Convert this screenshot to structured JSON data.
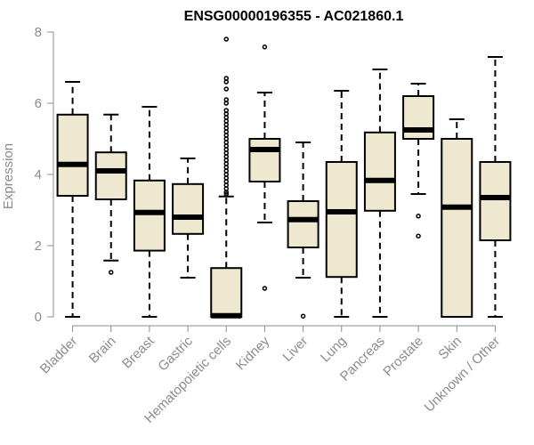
{
  "chart_data": {
    "type": "boxplot",
    "title": "ENSG00000196355 - AC021860.1",
    "xlabel": "",
    "ylabel": "Expression",
    "ylim": [
      0,
      8
    ],
    "yticks": [
      0,
      2,
      4,
      6,
      8
    ],
    "box_fill": "#efe8d0",
    "categories": [
      "Bladder",
      "Brain",
      "Breast",
      "Gastric",
      "Hematopoietic cells",
      "Kidney",
      "Liver",
      "Lung",
      "Pancreas",
      "Prostate",
      "Skin",
      "Unknown / Other"
    ],
    "boxes": [
      {
        "whisker_low": 0.0,
        "q1": 3.4,
        "median": 4.28,
        "q3": 5.68,
        "whisker_high": 6.6,
        "outliers": []
      },
      {
        "whisker_low": 1.58,
        "q1": 3.3,
        "median": 4.1,
        "q3": 4.62,
        "whisker_high": 5.68,
        "outliers": [
          1.25
        ]
      },
      {
        "whisker_low": 0.0,
        "q1": 1.86,
        "median": 2.93,
        "q3": 3.83,
        "whisker_high": 5.9,
        "outliers": []
      },
      {
        "whisker_low": 1.1,
        "q1": 2.33,
        "median": 2.8,
        "q3": 3.73,
        "whisker_high": 4.45,
        "outliers": []
      },
      {
        "whisker_low": 0.0,
        "q1": 0.0,
        "median": 0.03,
        "q3": 1.37,
        "whisker_high": 3.38,
        "outliers": [
          3.45,
          3.5,
          3.6,
          3.7,
          3.8,
          3.9,
          4.0,
          4.1,
          4.2,
          4.3,
          4.4,
          4.5,
          4.6,
          4.7,
          4.8,
          4.9,
          5.0,
          5.1,
          5.2,
          5.3,
          5.4,
          5.5,
          5.6,
          5.7,
          5.8,
          6.0,
          6.1,
          6.4,
          6.6,
          6.7,
          7.8
        ]
      },
      {
        "whisker_low": 2.65,
        "q1": 3.8,
        "median": 4.7,
        "q3": 5.0,
        "whisker_high": 6.3,
        "outliers": [
          0.8,
          7.58
        ]
      },
      {
        "whisker_low": 1.1,
        "q1": 1.95,
        "median": 2.73,
        "q3": 3.25,
        "whisker_high": 4.9,
        "outliers": [
          0.02
        ]
      },
      {
        "whisker_low": 0.0,
        "q1": 1.12,
        "median": 2.95,
        "q3": 4.35,
        "whisker_high": 6.35,
        "outliers": []
      },
      {
        "whisker_low": 0.0,
        "q1": 2.98,
        "median": 3.83,
        "q3": 5.18,
        "whisker_high": 6.95,
        "outliers": []
      },
      {
        "whisker_low": 3.45,
        "q1": 5.0,
        "median": 5.25,
        "q3": 6.2,
        "whisker_high": 6.55,
        "outliers": [
          2.83,
          2.27
        ]
      },
      {
        "whisker_low": 0.0,
        "q1": 0.0,
        "median": 3.08,
        "q3": 5.0,
        "whisker_high": 5.55,
        "outliers": []
      },
      {
        "whisker_low": 0.0,
        "q1": 2.15,
        "median": 3.35,
        "q3": 4.35,
        "whisker_high": 7.3,
        "outliers": []
      }
    ]
  }
}
